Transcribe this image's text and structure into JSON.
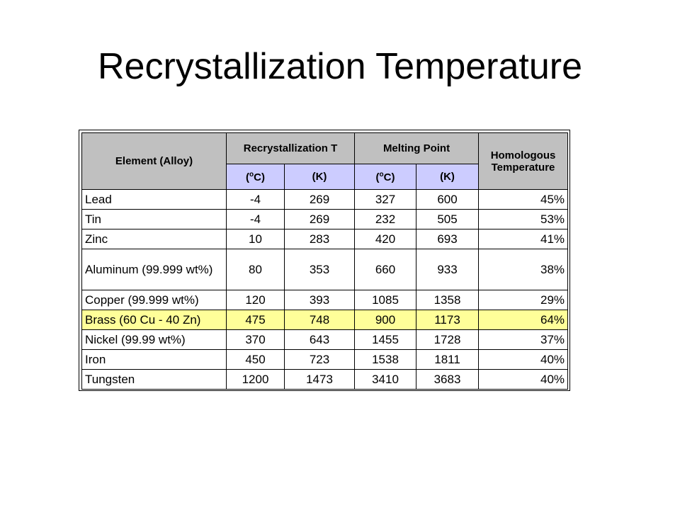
{
  "title": "Recrystallization Temperature",
  "table": {
    "header": {
      "element": "Element (Alloy)",
      "recryst": "Recrystallization T",
      "melting": "Melting Point",
      "homologous_line1": "Homologous",
      "homologous_line2": "Temperature",
      "unit_c_open": "(",
      "unit_c_deg": "o",
      "unit_c_close": "C)",
      "unit_k": "(K)"
    },
    "rows": [
      {
        "name": "Lead",
        "rc": "-4",
        "rk": "269",
        "mc": "327",
        "mk": "600",
        "h": "45%"
      },
      {
        "name": "Tin",
        "rc": "-4",
        "rk": "269",
        "mc": "232",
        "mk": "505",
        "h": "53%"
      },
      {
        "name": "Zinc",
        "rc": "10",
        "rk": "283",
        "mc": "420",
        "mk": "693",
        "h": "41%"
      },
      {
        "name": "Aluminum (99.999 wt%)",
        "rc": "80",
        "rk": "353",
        "mc": "660",
        "mk": "933",
        "h": "38%"
      },
      {
        "name": "Copper (99.999 wt%)",
        "rc": "120",
        "rk": "393",
        "mc": "1085",
        "mk": "1358",
        "h": "29%"
      },
      {
        "name": "Brass (60 Cu - 40 Zn)",
        "rc": "475",
        "rk": "748",
        "mc": "900",
        "mk": "1173",
        "h": "64%"
      },
      {
        "name": "Nickel (99.99 wt%)",
        "rc": "370",
        "rk": "643",
        "mc": "1455",
        "mk": "1728",
        "h": "37%"
      },
      {
        "name": "Iron",
        "rc": "450",
        "rk": "723",
        "mc": "1538",
        "mk": "1811",
        "h": "40%"
      },
      {
        "name": "Tungsten",
        "rc": "1200",
        "rk": "1473",
        "mc": "3410",
        "mk": "3683",
        "h": "40%"
      }
    ],
    "highlight_row": "Brass (60 Cu - 40 Zn)",
    "colors": {
      "header_gray": "#c0c0c0",
      "header_unit": "#ccccff",
      "highlight": "#ffff99"
    }
  }
}
